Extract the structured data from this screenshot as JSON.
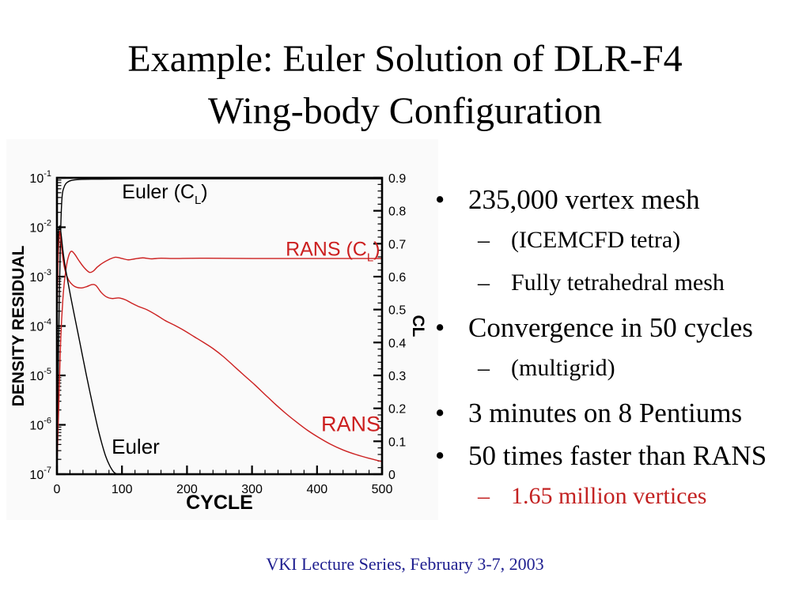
{
  "slide": {
    "title_line1": "Example: Euler Solution of DLR-F4",
    "title_line2": "Wing-body Configuration",
    "footer": "VKI Lecture Series, February 3-7, 2003"
  },
  "colors": {
    "chart_red": "#cc2020",
    "bullet_red": "#c32222",
    "footer_navy": "#1e1e8f",
    "text_black": "#000000",
    "chart_bg": "#fafafa"
  },
  "bullets": [
    {
      "level": 1,
      "marker": "•",
      "text": "235,000 vertex mesh",
      "color": "#000000"
    },
    {
      "level": 2,
      "marker": "–",
      "text": "(ICEMCFD tetra)",
      "color": "#000000"
    },
    {
      "level": 2,
      "marker": "–",
      "text": "Fully tetrahedral mesh",
      "color": "#000000"
    },
    {
      "level": 1,
      "marker": "•",
      "text": "Convergence in 50 cycles",
      "color": "#000000"
    },
    {
      "level": 2,
      "marker": "–",
      "text": "(multigrid)",
      "color": "#000000"
    },
    {
      "level": 1,
      "marker": "•",
      "text": "3 minutes on 8 Pentiums",
      "color": "#000000"
    },
    {
      "level": 1,
      "marker": "•",
      "text": "50 times faster than RANS",
      "color": "#000000"
    },
    {
      "level": 2,
      "marker": "–",
      "text": "1.65 million  vertices",
      "color": "#c32222"
    }
  ],
  "chart_data": {
    "type": "line",
    "title": "",
    "xlabel": "CYCLE",
    "ylabel_left": "DENSITY RESIDUAL",
    "ylabel_right": "CL",
    "x_range": [
      0,
      500
    ],
    "x_major_ticks": [
      0,
      100,
      200,
      300,
      400,
      500
    ],
    "x_tick_labels": [
      "0",
      "100",
      "200",
      "300",
      "400",
      "500"
    ],
    "x_minor_step": 20,
    "left_axis": {
      "scale": "log",
      "range_top": 0.1,
      "range_bottom": 1e-07,
      "tick_base": "10",
      "tick_exponents": [
        "-1",
        "-2",
        "-3",
        "-4",
        "-5",
        "-6",
        "-7"
      ]
    },
    "right_axis": {
      "scale": "linear",
      "range": [
        0,
        0.9
      ],
      "ticks": [
        0,
        0.1,
        0.2,
        0.3,
        0.4,
        0.5,
        0.6,
        0.7,
        0.8,
        0.9
      ],
      "tick_labels": [
        "0",
        "0.1",
        "0.2",
        "0.3",
        "0.4",
        "0.5",
        "0.6",
        "0.7",
        "0.8",
        "0.9"
      ],
      "minor_step": 0.02
    },
    "grid": false,
    "legend_position": "inline-labels",
    "series": [
      {
        "name": "Euler (CL)",
        "axis": "cl",
        "color": "#000000",
        "points": [
          [
            0,
            0.02
          ],
          [
            2,
            0.3
          ],
          [
            4,
            0.58
          ],
          [
            6,
            0.76
          ],
          [
            8,
            0.845
          ],
          [
            11,
            0.872
          ],
          [
            15,
            0.885
          ],
          [
            22,
            0.892
          ],
          [
            35,
            0.895
          ],
          [
            60,
            0.896
          ],
          [
            120,
            0.897
          ],
          [
            250,
            0.897
          ],
          [
            500,
            0.897
          ]
        ]
      },
      {
        "name": "RANS (CL)",
        "axis": "cl",
        "color": "#cc2020",
        "points": [
          [
            0,
            0.02
          ],
          [
            3,
            0.22
          ],
          [
            6,
            0.42
          ],
          [
            10,
            0.555
          ],
          [
            14,
            0.625
          ],
          [
            18,
            0.663
          ],
          [
            22,
            0.677
          ],
          [
            27,
            0.669
          ],
          [
            34,
            0.648
          ],
          [
            42,
            0.627
          ],
          [
            50,
            0.613
          ],
          [
            56,
            0.617
          ],
          [
            62,
            0.629
          ],
          [
            70,
            0.641
          ],
          [
            80,
            0.652
          ],
          [
            90,
            0.659
          ],
          [
            100,
            0.655
          ],
          [
            110,
            0.651
          ],
          [
            120,
            0.654
          ],
          [
            132,
            0.657
          ],
          [
            145,
            0.654
          ],
          [
            160,
            0.656
          ],
          [
            180,
            0.655
          ],
          [
            220,
            0.656
          ],
          [
            300,
            0.655
          ],
          [
            500,
            0.655
          ]
        ]
      },
      {
        "name": "RANS residual",
        "axis": "res",
        "color": "#cc2020",
        "points": [
          [
            0,
            0.00012
          ],
          [
            2,
            0.0025
          ],
          [
            4,
            0.008
          ],
          [
            6,
            0.0055
          ],
          [
            9,
            0.0024
          ],
          [
            13,
            0.00125
          ],
          [
            18,
            0.00085
          ],
          [
            24,
            0.00068
          ],
          [
            30,
            0.00061
          ],
          [
            38,
            0.00059
          ],
          [
            46,
            0.00063
          ],
          [
            54,
            0.00069
          ],
          [
            60,
            0.00066
          ],
          [
            68,
            0.00048
          ],
          [
            76,
            0.00039
          ],
          [
            85,
            0.00036
          ],
          [
            95,
            0.00037
          ],
          [
            105,
            0.00034
          ],
          [
            115,
            0.00029
          ],
          [
            125,
            0.00025
          ],
          [
            138,
            0.000215
          ],
          [
            152,
            0.00017
          ],
          [
            166,
            0.00013
          ],
          [
            180,
            0.000105
          ],
          [
            195,
            8.2e-05
          ],
          [
            210,
            6.2e-05
          ],
          [
            225,
            4.7e-05
          ],
          [
            240,
            3.5e-05
          ],
          [
            256,
            2.4e-05
          ],
          [
            272,
            1.55e-05
          ],
          [
            288,
            1e-05
          ],
          [
            304,
            6.5e-06
          ],
          [
            320,
            4.1e-06
          ],
          [
            336,
            2.6e-06
          ],
          [
            352,
            1.7e-06
          ],
          [
            368,
            1.15e-06
          ],
          [
            385,
            7.8e-07
          ],
          [
            402,
            5.6e-07
          ],
          [
            420,
            4.1e-07
          ],
          [
            440,
            3.1e-07
          ],
          [
            460,
            2.5e-07
          ],
          [
            480,
            2.1e-07
          ],
          [
            500,
            1.8e-07
          ]
        ]
      },
      {
        "name": "Euler residual",
        "axis": "res",
        "color": "#000000",
        "points": [
          [
            0,
            0.0015
          ],
          [
            2,
            0.006
          ],
          [
            4,
            0.0105
          ],
          [
            6,
            0.008
          ],
          [
            9,
            0.0035
          ],
          [
            12,
            0.0018
          ],
          [
            16,
            0.0009
          ],
          [
            21,
            0.0004
          ],
          [
            27,
            0.00016
          ],
          [
            33,
            6.5e-05
          ],
          [
            39,
            2.6e-05
          ],
          [
            45,
            1.05e-05
          ],
          [
            51,
            4.4e-06
          ],
          [
            57,
            1.9e-06
          ],
          [
            63,
            8.5e-07
          ],
          [
            69,
            4.2e-07
          ],
          [
            75,
            2.3e-07
          ],
          [
            81,
            1.5e-07
          ],
          [
            87,
            1.12e-07
          ],
          [
            92,
            1e-07
          ]
        ]
      }
    ],
    "annotations": [
      {
        "id": "euler-cl",
        "text": "Euler (C",
        "sub": "L",
        "suffix": ")",
        "color": "#000000",
        "cycle": 166,
        "value": 0.838,
        "value_axis": "cl",
        "anchor": "middle",
        "size": 25
      },
      {
        "id": "rans-cl",
        "text": "RANS (C",
        "sub": "L",
        "suffix": ")",
        "color": "#cc2020",
        "cycle": 497,
        "value": 0.664,
        "value_axis": "cl",
        "anchor": "end",
        "size": 25
      },
      {
        "id": "rans",
        "text": "RANS",
        "color": "#cc2020",
        "cycle": 452,
        "value": 7.5e-07,
        "value_axis": "res",
        "anchor": "middle",
        "size": 27
      },
      {
        "id": "euler",
        "text": "Euler",
        "color": "#000000",
        "cycle": 121,
        "value": 2.6e-07,
        "value_axis": "res",
        "anchor": "middle",
        "size": 26
      }
    ]
  }
}
